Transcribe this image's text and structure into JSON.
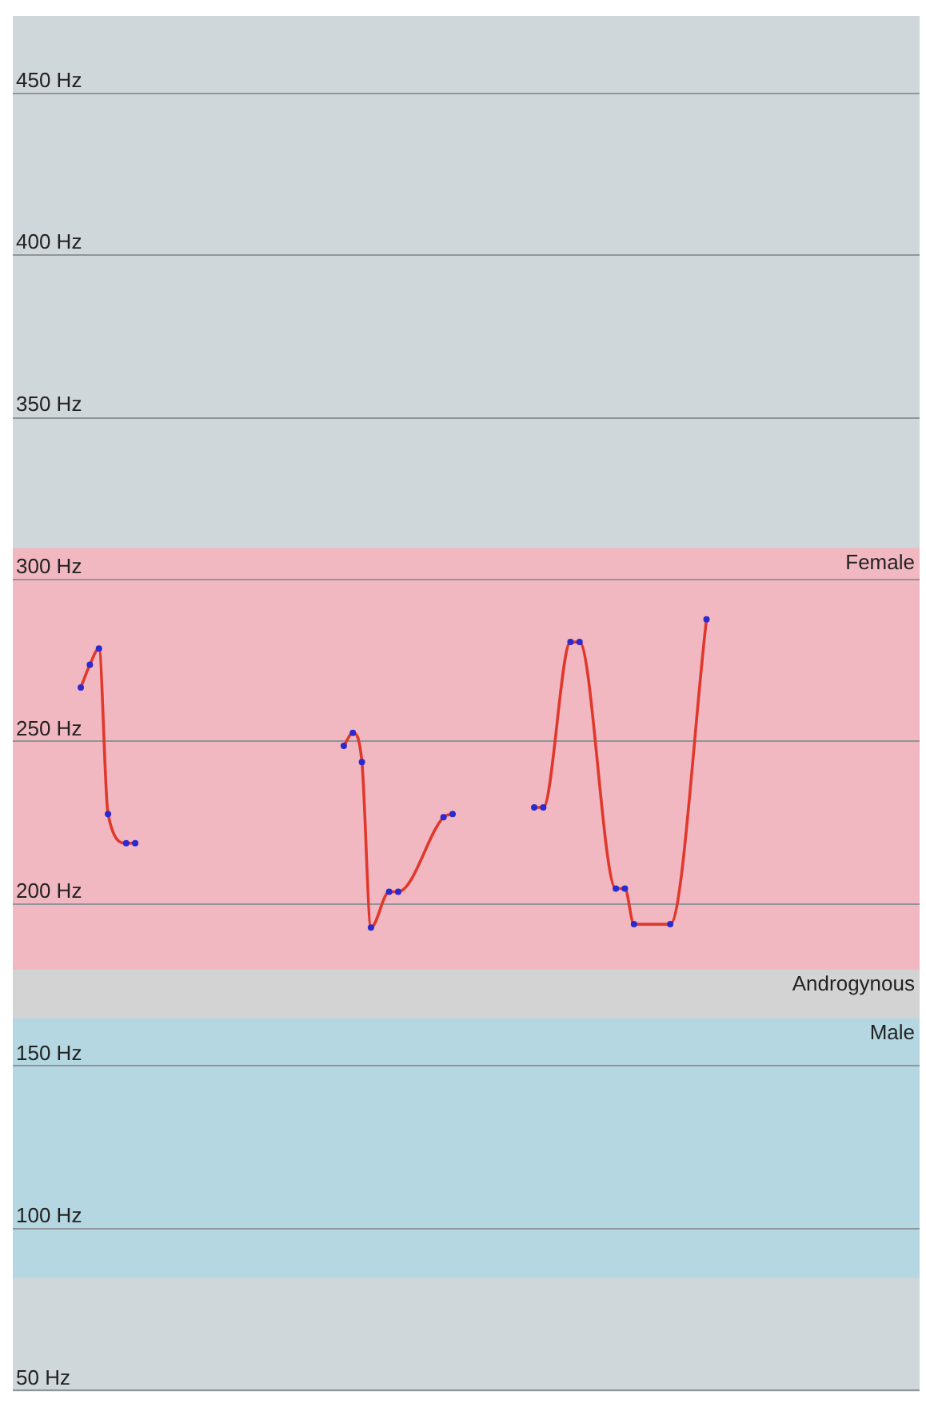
{
  "chart_data": {
    "type": "line",
    "categories": [
      null,
      null,
      null,
      null,
      null,
      null,
      null,
      null,
      null,
      null,
      null,
      null,
      null,
      null,
      null,
      null,
      null,
      null,
      null,
      null,
      null,
      null,
      null,
      null,
      null,
      null,
      null,
      null,
      null,
      null,
      null,
      null,
      null,
      null,
      null,
      null,
      null,
      null,
      null,
      null,
      null,
      null,
      null,
      null,
      null,
      null,
      null,
      null,
      null,
      null,
      null,
      null,
      null,
      null,
      null,
      null,
      null,
      null,
      null,
      null,
      null,
      null,
      null,
      null,
      null,
      null,
      null,
      null,
      null,
      null,
      null,
      null,
      null,
      null,
      null,
      null,
      null,
      null,
      null,
      null,
      null,
      null,
      null,
      null,
      null,
      null,
      null,
      null,
      null,
      null,
      null,
      null,
      null,
      null,
      null,
      null,
      null,
      null,
      null,
      null
    ],
    "series": [
      {
        "color": "#e0382c",
        "values": [
          null,
          null,
          null,
          null,
          null,
          null,
          null,
          267,
          274,
          279,
          228,
          null,
          219,
          219,
          null,
          null,
          null,
          null,
          null,
          null,
          null,
          null,
          null,
          null,
          null,
          null,
          null,
          null,
          null,
          null,
          null,
          null,
          null,
          null,
          null,
          null,
          null,
          null,
          null,
          null,
          null,
          null,
          null,
          null,
          null,
          null,
          null,
          null,
          null,
          null,
          null,
          null,
          null,
          null,
          null,
          null,
          null,
          null,
          null,
          null,
          null,
          null,
          null,
          null,
          null,
          null,
          null,
          null,
          null,
          null,
          null,
          null,
          null,
          null,
          null,
          null,
          null,
          null,
          null,
          null,
          null,
          null,
          null,
          null,
          null,
          null,
          null,
          null,
          null,
          null,
          null,
          null,
          null,
          null,
          null,
          null,
          null,
          null,
          null,
          null
        ]
      },
      {
        "color": "#e0382c",
        "values": [
          null,
          null,
          null,
          null,
          null,
          null,
          null,
          null,
          null,
          null,
          null,
          null,
          null,
          null,
          null,
          null,
          null,
          null,
          null,
          null,
          null,
          null,
          null,
          null,
          null,
          null,
          null,
          null,
          null,
          null,
          null,
          null,
          null,
          null,
          null,
          null,
          249,
          253,
          244,
          193,
          null,
          204,
          204,
          null,
          null,
          null,
          null,
          227,
          228,
          null,
          null,
          null,
          null,
          null,
          null,
          null,
          null,
          null,
          null,
          null,
          null,
          null,
          null,
          null,
          null,
          null,
          null,
          null,
          null,
          null,
          null,
          null,
          null,
          null,
          null,
          null,
          null,
          null,
          null,
          null,
          null,
          null,
          null,
          null,
          null,
          null,
          null,
          null,
          null,
          null,
          null,
          null,
          null,
          null,
          null,
          null,
          null,
          null,
          null,
          null
        ]
      },
      {
        "color": "#e0382c",
        "values": [
          null,
          null,
          null,
          null,
          null,
          null,
          null,
          null,
          null,
          null,
          null,
          null,
          null,
          null,
          null,
          null,
          null,
          null,
          null,
          null,
          null,
          null,
          null,
          null,
          null,
          null,
          null,
          null,
          null,
          null,
          null,
          null,
          null,
          null,
          null,
          null,
          null,
          null,
          null,
          null,
          null,
          null,
          null,
          null,
          null,
          null,
          null,
          null,
          null,
          null,
          null,
          null,
          null,
          null,
          null,
          null,
          null,
          230,
          230,
          null,
          null,
          281,
          281,
          null,
          null,
          null,
          205,
          205,
          194,
          null,
          null,
          null,
          194,
          null,
          null,
          null,
          288,
          null,
          null,
          null,
          null,
          null,
          null,
          null,
          null,
          null,
          null,
          null,
          null,
          null,
          null,
          null,
          null,
          null,
          null,
          null,
          null,
          null,
          null,
          null
        ]
      }
    ],
    "ylim": [
      50,
      474
    ],
    "yticks": [
      {
        "value": 50,
        "label": "50 Hz"
      },
      {
        "value": 100,
        "label": "100 Hz"
      },
      {
        "value": 150,
        "label": "150 Hz"
      },
      {
        "value": 200,
        "label": "200 Hz"
      },
      {
        "value": 250,
        "label": "250 Hz"
      },
      {
        "value": 300,
        "label": "300 Hz"
      },
      {
        "value": 350,
        "label": "350 Hz"
      },
      {
        "value": 400,
        "label": "400 Hz"
      },
      {
        "value": 450,
        "label": "450 Hz"
      }
    ],
    "bands": [
      {
        "axis": "y",
        "from": 180,
        "to": 310,
        "label": "Female",
        "color": "#f2b8c1"
      },
      {
        "axis": "y",
        "from": 165,
        "to": 180,
        "label": "Androgynous",
        "color": "#d3d3d3"
      },
      {
        "axis": "y",
        "from": 85,
        "to": 165,
        "label": "Male",
        "color": "#b4d7e1"
      }
    ],
    "grid": "y",
    "legend": false,
    "tick_labels": "y",
    "marker": "circle",
    "line_style": "solid"
  }
}
